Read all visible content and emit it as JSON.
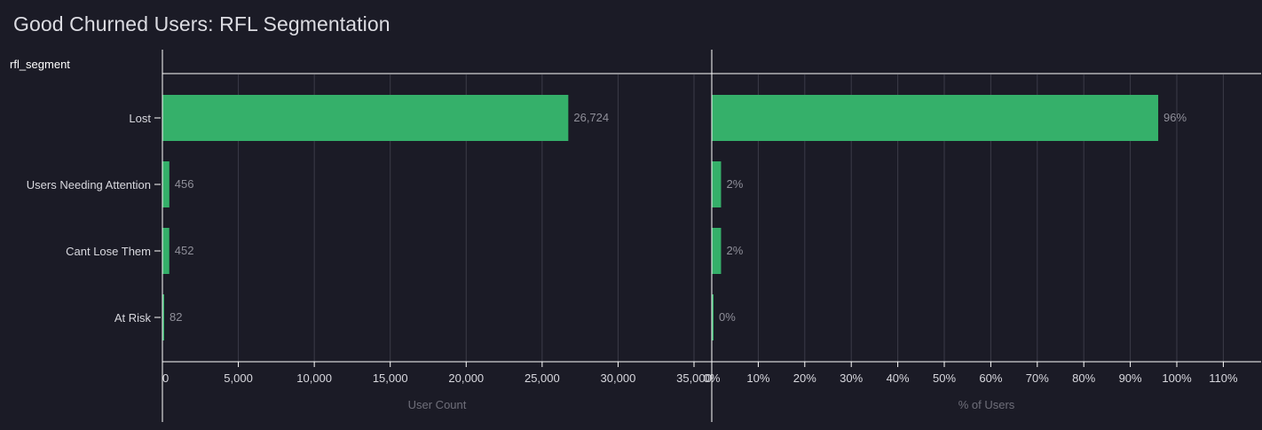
{
  "title": "Good Churned Users: RFL Segmentation",
  "dimension_label": "rfl_segment",
  "colors": {
    "background": "#1b1b26",
    "bar": "#35b06a",
    "grid": "#3b3b48",
    "axis": "#ffffff",
    "tick_text": "#d8d8de",
    "value_text": "#8f8f99",
    "axis_title": "#6f6f7a"
  },
  "chart_data": [
    {
      "type": "bar",
      "orientation": "horizontal",
      "categories": [
        "Lost",
        "Users Needing Attention",
        "Cant Lose Them",
        "At Risk"
      ],
      "series": [
        {
          "values": [
            26724,
            456,
            452,
            82
          ]
        }
      ],
      "value_labels": [
        "26,724",
        "456",
        "452",
        "82"
      ],
      "xlabel": "User Count",
      "xlim": [
        0,
        35000
      ],
      "x_ticks": [
        0,
        5000,
        10000,
        15000,
        20000,
        25000,
        30000,
        35000
      ],
      "x_tick_labels": [
        "0",
        "5,000",
        "10,000",
        "15,000",
        "20,000",
        "25,000",
        "30,000",
        "35,000"
      ],
      "grid": true
    },
    {
      "type": "bar",
      "orientation": "horizontal",
      "categories": [
        "Lost",
        "Users Needing Attention",
        "Cant Lose Them",
        "At Risk"
      ],
      "series": [
        {
          "values": [
            96,
            2,
            2,
            0
          ]
        }
      ],
      "value_labels": [
        "96%",
        "2%",
        "2%",
        "0%"
      ],
      "xlabel": "% of Users",
      "xlim": [
        0,
        110
      ],
      "x_ticks": [
        0,
        10,
        20,
        30,
        40,
        50,
        60,
        70,
        80,
        90,
        100,
        110
      ],
      "x_tick_labels": [
        "0%",
        "10%",
        "20%",
        "30%",
        "40%",
        "50%",
        "60%",
        "70%",
        "80%",
        "90%",
        "100%",
        "110%"
      ],
      "grid": true
    }
  ]
}
